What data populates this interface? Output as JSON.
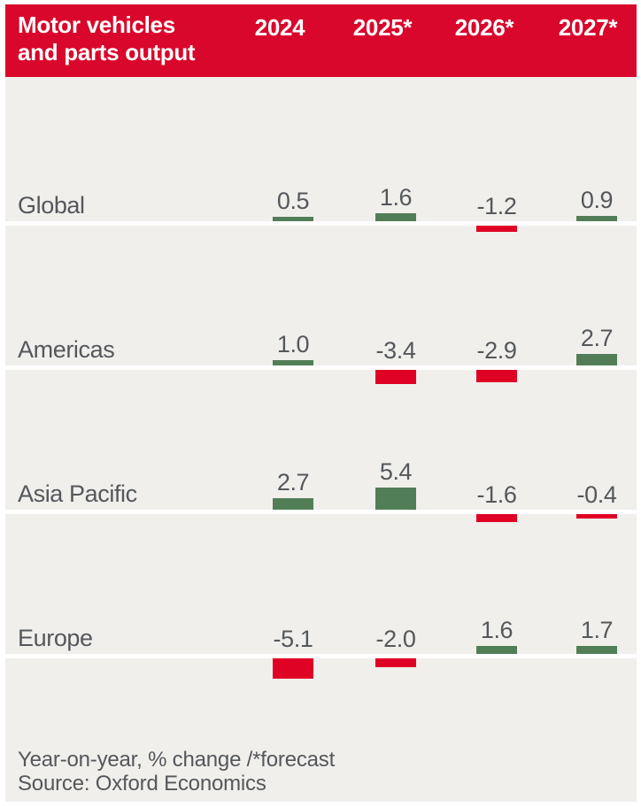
{
  "header": {
    "title_line1": "Motor vehicles",
    "title_line2": "and parts output",
    "columns": [
      "2024",
      "2025*",
      "2026*",
      "2027*"
    ]
  },
  "chart_data": {
    "type": "bar",
    "title": "Motor vehicles and parts output",
    "categories": [
      "2024",
      "2025*",
      "2026*",
      "2027*"
    ],
    "series": [
      {
        "name": "Global",
        "values": [
          0.5,
          1.6,
          -1.2,
          0.9
        ]
      },
      {
        "name": "Americas",
        "values": [
          1.0,
          -3.4,
          -2.9,
          2.7
        ]
      },
      {
        "name": "Asia Pacific",
        "values": [
          2.7,
          5.4,
          -1.6,
          -0.4
        ]
      },
      {
        "name": "Europe",
        "values": [
          -5.1,
          -2.0,
          1.6,
          1.7
        ]
      }
    ],
    "unit_note": "Year-on-year, % change /*forecast",
    "source": "Source: Oxford Economics",
    "value_labels": "shown above each bar, one decimal",
    "baseline": 0,
    "legend": "none",
    "grid": "white zero baseline per row",
    "colors": {
      "positive_bar": "#527e57",
      "negative_bar": "#e00224",
      "header_background": "#d9072b",
      "header_text": "#ffffff",
      "panel_background": "#f0efeb",
      "text": "#54575c",
      "baseline": "#ffffff"
    }
  },
  "footer": {
    "note": "Year-on-year, % change /*forecast",
    "source": "Source: Oxford Economics"
  }
}
